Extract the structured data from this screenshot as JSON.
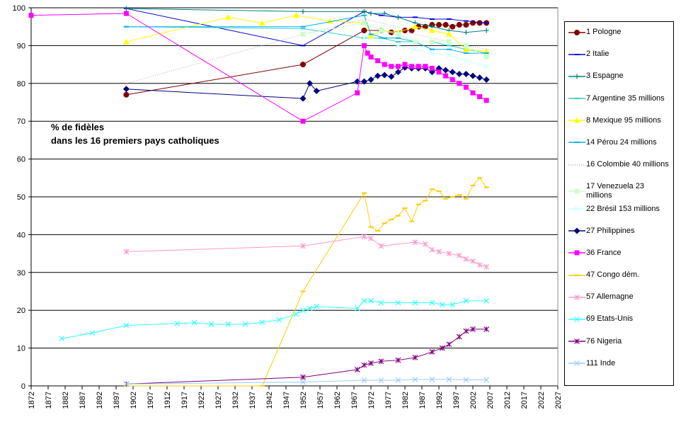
{
  "chart_data": {
    "type": "line",
    "annotation": [
      "% de fidèles",
      "dans les 16 premiers pays catholiques"
    ],
    "xlim": [
      1872,
      2027
    ],
    "xticks": [
      1872,
      1877,
      1882,
      1887,
      1892,
      1897,
      1902,
      1907,
      1912,
      1917,
      1922,
      1927,
      1932,
      1937,
      1942,
      1947,
      1952,
      1957,
      1962,
      1967,
      1972,
      1977,
      1982,
      1987,
      1992,
      1997,
      2002,
      2007,
      2012,
      2017,
      2022,
      2027
    ],
    "ylim": [
      0,
      100
    ],
    "yticks": [
      0,
      10,
      20,
      30,
      40,
      50,
      60,
      70,
      80,
      90,
      100
    ],
    "grid": true,
    "legend": "right",
    "series": [
      {
        "name": "1 Pologne",
        "color": "#800000",
        "marker": "circle",
        "x": [
          1900,
          1952,
          1970,
          1975,
          1978,
          1982,
          1984,
          1986,
          1988,
          1990,
          1992,
          1994,
          1996,
          1998,
          2000,
          2002,
          2004,
          2006
        ],
        "values": [
          77,
          85,
          94,
          94,
          93.5,
          94,
          94,
          95,
          95,
          95.5,
          95.5,
          95.5,
          95,
          95.5,
          95.5,
          96,
          96,
          96
        ]
      },
      {
        "name": "2 Italie",
        "color": "#0000cc",
        "marker": "dash",
        "x": [
          1900,
          1952,
          1970,
          1975,
          1980,
          1985,
          1990,
          1995,
          2000,
          2006
        ],
        "values": [
          99.8,
          90,
          99,
          98,
          97.5,
          97.5,
          97,
          97,
          96.5,
          96
        ]
      },
      {
        "name": "3 Espagne",
        "color": "#008080",
        "marker": "plus",
        "x": [
          1900,
          1952,
          1970,
          1972,
          1976,
          1980,
          1985,
          1990,
          1995,
          2000,
          2006
        ],
        "values": [
          99.8,
          99,
          99,
          98.5,
          98.5,
          97.5,
          96,
          95,
          94,
          93.5,
          94
        ]
      },
      {
        "name": "7 Argentine 35 millions",
        "color": "#33cccc",
        "marker": "dash",
        "x": [
          1900,
          1952,
          1970,
          1975,
          1980,
          1985,
          1990,
          1995,
          2000,
          2006
        ],
        "values": [
          95,
          94.5,
          92,
          92,
          91,
          91,
          91,
          90,
          89,
          88
        ]
      },
      {
        "name": "8 Mexique 95 millions",
        "color": "#ffff00",
        "marker": "triangle",
        "x": [
          1900,
          1930,
          1940,
          1950,
          1960,
          1970,
          1972,
          1975,
          1980,
          1985,
          1990,
          1995,
          2000,
          2006
        ],
        "values": [
          91,
          97.5,
          96,
          98,
          96.5,
          96,
          92.5,
          94,
          93.5,
          95,
          94,
          93,
          89,
          88.5
        ]
      },
      {
        "name": "14 Pérou 24 millions",
        "color": "#00b0f0",
        "marker": "dash",
        "x": [
          1900,
          1952,
          1970,
          1972,
          1976,
          1980,
          1985,
          1990,
          1995,
          2000,
          2006
        ],
        "values": [
          95,
          95,
          98,
          93,
          92,
          92,
          91,
          89,
          89,
          88,
          88
        ]
      },
      {
        "name": "16 Colombie 40 millions",
        "color": "#b0b0b0",
        "marker": "none",
        "dash": "dotted",
        "x": [
          1900,
          1952,
          1970,
          1975,
          1980,
          1985,
          1990,
          1995,
          2000,
          2006
        ],
        "values": [
          80,
          93,
          97,
          96,
          95,
          93,
          92,
          91,
          90,
          89
        ]
      },
      {
        "name": "17 Venezuela 23 millions",
        "color": "#ccffcc",
        "marker": "square",
        "x": [
          1952,
          1970,
          1975,
          1980,
          1985,
          1990,
          1995,
          2000,
          2006
        ],
        "values": [
          93,
          96,
          94,
          93,
          91,
          91,
          91,
          90,
          87
        ]
      },
      {
        "name": "22 Brésil 153 millions",
        "color": "#ccffff",
        "marker": "x",
        "x": [
          1970,
          1975,
          1980,
          1985,
          1990,
          1995,
          2000,
          2006
        ],
        "values": [
          92,
          91,
          90,
          89,
          88,
          87.5,
          86,
          84.5
        ]
      },
      {
        "name": "27 Philippines",
        "color": "#000080",
        "marker": "diamond",
        "x": [
          1900,
          1952,
          1954,
          1956,
          1968,
          1970,
          1972,
          1974,
          1976,
          1978,
          1980,
          1982,
          1984,
          1986,
          1988,
          1990,
          1992,
          1994,
          1996,
          1998,
          2000,
          2002,
          2004,
          2006
        ],
        "values": [
          78.5,
          76,
          80,
          78,
          80.5,
          80.5,
          81,
          82,
          82.2,
          81.8,
          83,
          84.2,
          84,
          84,
          84,
          83,
          84,
          83.5,
          83,
          82.5,
          82.5,
          82,
          81.5,
          81
        ]
      },
      {
        "name": "36 France",
        "color": "#ff00ff",
        "marker": "square",
        "x": [
          1872,
          1900,
          1952,
          1968,
          1970,
          1971,
          1972,
          1974,
          1976,
          1978,
          1980,
          1982,
          1984,
          1986,
          1988,
          1990,
          1992,
          1994,
          1996,
          1998,
          2000,
          2002,
          2004,
          2006
        ],
        "values": [
          98,
          98.5,
          70,
          77.5,
          90,
          88,
          87,
          86,
          85,
          84.5,
          84.5,
          85,
          84.5,
          84.5,
          84.5,
          84,
          83,
          82,
          81,
          80,
          79,
          77.5,
          76.5,
          75.5
        ]
      },
      {
        "name": "47 Congo dém.",
        "color": "#ffcc00",
        "marker": "dash",
        "x": [
          1900,
          1940,
          1952,
          1970,
          1972,
          1974,
          1976,
          1978,
          1980,
          1982,
          1984,
          1986,
          1988,
          1990,
          1992,
          1994,
          1996,
          1998,
          2000,
          2002,
          2004,
          2006
        ],
        "values": [
          0,
          0,
          25,
          51,
          42,
          41,
          43,
          44,
          45,
          47,
          43.5,
          48,
          49,
          52,
          51.5,
          49.5,
          50,
          50.5,
          49.5,
          53,
          55,
          52.5
        ]
      },
      {
        "name": "57 Allemagne",
        "color": "#ff99cc",
        "marker": "star",
        "x": [
          1900,
          1952,
          1970,
          1972,
          1975,
          1985,
          1988,
          1990,
          1992,
          1995,
          1998,
          2000,
          2002,
          2004,
          2006
        ],
        "values": [
          35.5,
          37,
          39.5,
          39,
          37,
          38,
          37.5,
          36,
          35.5,
          35,
          34.5,
          33.5,
          33,
          32,
          31.5
        ]
      },
      {
        "name": "69 Etats-Unis",
        "color": "#33ffff",
        "marker": "x",
        "x": [
          1881,
          1890,
          1900,
          1915,
          1920,
          1925,
          1930,
          1935,
          1940,
          1945,
          1950,
          1952,
          1954,
          1956,
          1968,
          1970,
          1972,
          1975,
          1980,
          1985,
          1990,
          1993,
          1996,
          2000,
          2006
        ],
        "values": [
          12.5,
          14,
          16,
          16.5,
          16.7,
          16.3,
          16.3,
          16.3,
          16.8,
          17.5,
          19,
          20,
          20.5,
          21,
          20.5,
          22.5,
          22.5,
          22,
          22,
          22,
          22,
          21.5,
          21.5,
          22.5,
          22.5
        ]
      },
      {
        "name": "76 Nigeria",
        "color": "#800080",
        "marker": "star",
        "x": [
          1900,
          1952,
          1968,
          1970,
          1972,
          1975,
          1980,
          1985,
          1990,
          1993,
          1995,
          1998,
          2000,
          2002,
          2006
        ],
        "values": [
          0.5,
          2.3,
          4.3,
          5.5,
          6,
          6.5,
          6.8,
          7.5,
          9,
          10,
          11,
          13,
          14.5,
          15,
          15
        ]
      },
      {
        "name": "111 Inde",
        "color": "#99ccff",
        "marker": "x",
        "x": [
          1900,
          1952,
          1970,
          1975,
          1980,
          1985,
          1990,
          1995,
          2000,
          2006
        ],
        "values": [
          0.5,
          1,
          1.5,
          1.5,
          1.5,
          1.7,
          1.7,
          1.7,
          1.6,
          1.6
        ]
      }
    ]
  }
}
